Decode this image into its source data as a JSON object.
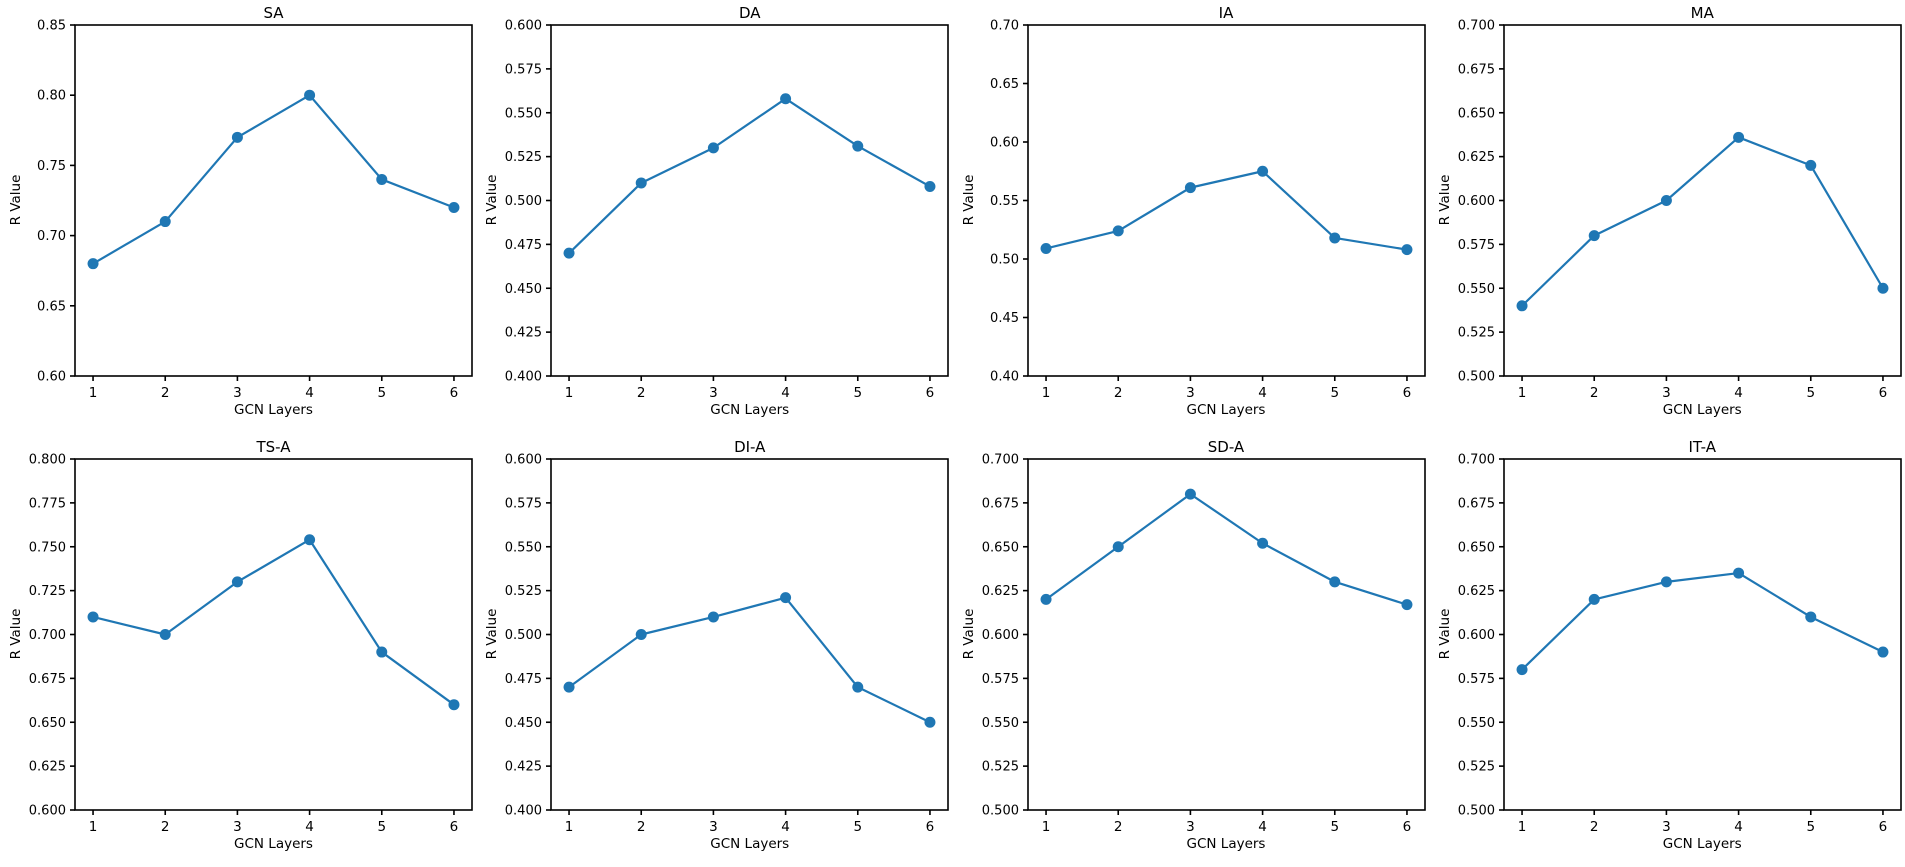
{
  "colors": {
    "line": "#1f77b4",
    "text": "#000000",
    "spine": "#000000",
    "background": "#ffffff"
  },
  "axis": {
    "x_values": [
      1,
      2,
      3,
      4,
      5,
      6
    ],
    "xtick_labels": [
      "1",
      "2",
      "3",
      "4",
      "5",
      "6"
    ],
    "xlim": [
      0.75,
      6.25
    ]
  },
  "chart_data": [
    {
      "type": "line",
      "title": "SA",
      "xlabel": "GCN Layers",
      "ylabel": "R Value",
      "x": [
        1,
        2,
        3,
        4,
        5,
        6
      ],
      "xtick_labels": [
        "1",
        "2",
        "3",
        "4",
        "5",
        "6"
      ],
      "values": [
        0.68,
        0.71,
        0.77,
        0.8,
        0.74,
        0.72
      ],
      "ylim": [
        0.6,
        0.85
      ],
      "yticks": [
        0.6,
        0.65,
        0.7,
        0.75,
        0.8,
        0.85
      ],
      "ytick_labels": [
        "0.60",
        "0.65",
        "0.70",
        "0.75",
        "0.80",
        "0.85"
      ],
      "line_color": "#1f77b4",
      "marker": "o",
      "grid": false,
      "legend": "none"
    },
    {
      "type": "line",
      "title": "DA",
      "xlabel": "GCN Layers",
      "ylabel": "R Value",
      "x": [
        1,
        2,
        3,
        4,
        5,
        6
      ],
      "xtick_labels": [
        "1",
        "2",
        "3",
        "4",
        "5",
        "6"
      ],
      "values": [
        0.47,
        0.51,
        0.53,
        0.558,
        0.531,
        0.508
      ],
      "ylim": [
        0.4,
        0.6
      ],
      "yticks": [
        0.4,
        0.425,
        0.45,
        0.475,
        0.5,
        0.525,
        0.55,
        0.575,
        0.6
      ],
      "ytick_labels": [
        "0.400",
        "0.425",
        "0.450",
        "0.475",
        "0.500",
        "0.525",
        "0.550",
        "0.575",
        "0.600"
      ],
      "line_color": "#1f77b4",
      "marker": "o",
      "grid": false,
      "legend": "none"
    },
    {
      "type": "line",
      "title": "IA",
      "xlabel": "GCN Layers",
      "ylabel": "R Value",
      "x": [
        1,
        2,
        3,
        4,
        5,
        6
      ],
      "xtick_labels": [
        "1",
        "2",
        "3",
        "4",
        "5",
        "6"
      ],
      "values": [
        0.509,
        0.524,
        0.561,
        0.575,
        0.518,
        0.508
      ],
      "ylim": [
        0.4,
        0.7
      ],
      "yticks": [
        0.4,
        0.45,
        0.5,
        0.55,
        0.6,
        0.65,
        0.7
      ],
      "ytick_labels": [
        "0.40",
        "0.45",
        "0.50",
        "0.55",
        "0.60",
        "0.65",
        "0.70"
      ],
      "line_color": "#1f77b4",
      "marker": "o",
      "grid": false,
      "legend": "none"
    },
    {
      "type": "line",
      "title": "MA",
      "xlabel": "GCN Layers",
      "ylabel": "R Value",
      "x": [
        1,
        2,
        3,
        4,
        5,
        6
      ],
      "xtick_labels": [
        "1",
        "2",
        "3",
        "4",
        "5",
        "6"
      ],
      "values": [
        0.54,
        0.58,
        0.6,
        0.636,
        0.62,
        0.55
      ],
      "ylim": [
        0.5,
        0.7
      ],
      "yticks": [
        0.5,
        0.525,
        0.55,
        0.575,
        0.6,
        0.625,
        0.65,
        0.675,
        0.7
      ],
      "ytick_labels": [
        "0.500",
        "0.525",
        "0.550",
        "0.575",
        "0.600",
        "0.625",
        "0.650",
        "0.675",
        "0.700"
      ],
      "line_color": "#1f77b4",
      "marker": "o",
      "grid": false,
      "legend": "none"
    },
    {
      "type": "line",
      "title": "TS-A",
      "xlabel": "GCN Layers",
      "ylabel": "R Value",
      "x": [
        1,
        2,
        3,
        4,
        5,
        6
      ],
      "xtick_labels": [
        "1",
        "2",
        "3",
        "4",
        "5",
        "6"
      ],
      "values": [
        0.71,
        0.7,
        0.73,
        0.754,
        0.69,
        0.66
      ],
      "ylim": [
        0.6,
        0.8
      ],
      "yticks": [
        0.6,
        0.625,
        0.65,
        0.675,
        0.7,
        0.725,
        0.75,
        0.775,
        0.8
      ],
      "ytick_labels": [
        "0.600",
        "0.625",
        "0.650",
        "0.675",
        "0.700",
        "0.725",
        "0.750",
        "0.775",
        "0.800"
      ],
      "line_color": "#1f77b4",
      "marker": "o",
      "grid": false,
      "legend": "none"
    },
    {
      "type": "line",
      "title": "DI-A",
      "xlabel": "GCN Layers",
      "ylabel": "R Value",
      "x": [
        1,
        2,
        3,
        4,
        5,
        6
      ],
      "xtick_labels": [
        "1",
        "2",
        "3",
        "4",
        "5",
        "6"
      ],
      "values": [
        0.47,
        0.5,
        0.51,
        0.521,
        0.47,
        0.45
      ],
      "ylim": [
        0.4,
        0.6
      ],
      "yticks": [
        0.4,
        0.425,
        0.45,
        0.475,
        0.5,
        0.525,
        0.55,
        0.575,
        0.6
      ],
      "ytick_labels": [
        "0.400",
        "0.425",
        "0.450",
        "0.475",
        "0.500",
        "0.525",
        "0.550",
        "0.575",
        "0.600"
      ],
      "line_color": "#1f77b4",
      "marker": "o",
      "grid": false,
      "legend": "none"
    },
    {
      "type": "line",
      "title": "SD-A",
      "xlabel": "GCN Layers",
      "ylabel": "R Value",
      "x": [
        1,
        2,
        3,
        4,
        5,
        6
      ],
      "xtick_labels": [
        "1",
        "2",
        "3",
        "4",
        "5",
        "6"
      ],
      "values": [
        0.62,
        0.65,
        0.68,
        0.652,
        0.63,
        0.617
      ],
      "ylim": [
        0.5,
        0.7
      ],
      "yticks": [
        0.5,
        0.525,
        0.55,
        0.575,
        0.6,
        0.625,
        0.65,
        0.675,
        0.7
      ],
      "ytick_labels": [
        "0.500",
        "0.525",
        "0.550",
        "0.575",
        "0.600",
        "0.625",
        "0.650",
        "0.675",
        "0.700"
      ],
      "line_color": "#1f77b4",
      "marker": "o",
      "grid": false,
      "legend": "none"
    },
    {
      "type": "line",
      "title": "IT-A",
      "xlabel": "GCN Layers",
      "ylabel": "R Value",
      "x": [
        1,
        2,
        3,
        4,
        5,
        6
      ],
      "xtick_labels": [
        "1",
        "2",
        "3",
        "4",
        "5",
        "6"
      ],
      "values": [
        0.58,
        0.62,
        0.63,
        0.635,
        0.61,
        0.59
      ],
      "ylim": [
        0.5,
        0.7
      ],
      "yticks": [
        0.5,
        0.525,
        0.55,
        0.575,
        0.6,
        0.625,
        0.65,
        0.675,
        0.7
      ],
      "ytick_labels": [
        "0.500",
        "0.525",
        "0.550",
        "0.575",
        "0.600",
        "0.625",
        "0.650",
        "0.675",
        "0.700"
      ],
      "line_color": "#1f77b4",
      "marker": "o",
      "grid": false,
      "legend": "none"
    }
  ]
}
